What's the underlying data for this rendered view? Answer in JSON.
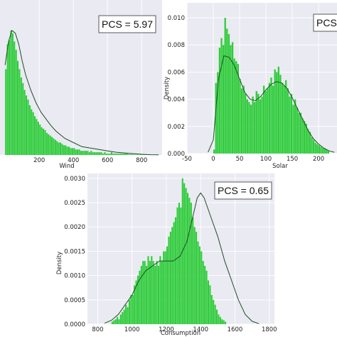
{
  "chart_data": [
    {
      "type": "bar",
      "xlabel": "Wind",
      "ylabel": "",
      "annotation": "PCS = 5.97",
      "xlim": [
        -30,
        920
      ],
      "ylim": [
        0,
        0.0112
      ],
      "xticks": [
        200,
        400,
        600,
        800
      ],
      "yticks": [],
      "grid": true,
      "bar_color": "#2ecc3a",
      "bins": {
        "start": 0,
        "width": 10,
        "values": [
          0.0062,
          0.008,
          0.0083,
          0.009,
          0.0088,
          0.0082,
          0.0076,
          0.0068,
          0.0062,
          0.0056,
          0.0052,
          0.0047,
          0.0043,
          0.004,
          0.0036,
          0.0033,
          0.0031,
          0.0028,
          0.0026,
          0.0024,
          0.0022,
          0.002,
          0.0019,
          0.0018,
          0.0016,
          0.0015,
          0.0014,
          0.0013,
          0.0012,
          0.0011,
          0.001,
          0.0009,
          0.0009,
          0.0008,
          0.0007,
          0.0007,
          0.0006,
          0.0006,
          0.0005,
          0.0005,
          0.0005,
          0.0004,
          0.0004,
          0.0004,
          0.0003,
          0.0003,
          0.0003,
          0.0003,
          0.0003,
          0.0002,
          0.0003,
          0.0002,
          0.0002,
          0.0002,
          0.0002,
          0.0002,
          0.0002,
          0.0001,
          0.0002,
          0.0001,
          0.0001,
          0.0001,
          0.0002,
          0.0001,
          0.0001,
          0.0001,
          0.0001,
          0.0001,
          0.0001,
          0.0001,
          0.0001,
          0.0001,
          5e-05,
          5e-05,
          5e-05,
          3e-05,
          3e-05,
          3e-05,
          2e-05,
          2e-05,
          2e-05,
          2e-05,
          1e-05,
          1e-05,
          1e-05,
          1e-05,
          1e-05,
          1e-05,
          1e-05,
          1e-05
        ]
      },
      "kde": {
        "x": [
          0,
          20,
          40,
          60,
          80,
          100,
          120,
          150,
          180,
          210,
          240,
          270,
          300,
          350,
          400,
          450,
          500,
          550,
          600,
          650,
          700,
          750,
          800,
          850,
          900
        ],
        "y": [
          0.0065,
          0.0082,
          0.009,
          0.0088,
          0.008,
          0.0068,
          0.0058,
          0.0047,
          0.0038,
          0.0031,
          0.0026,
          0.0021,
          0.0017,
          0.0012,
          0.0009,
          0.0006,
          0.0005,
          0.0004,
          0.0003,
          0.0002,
          0.00015,
          0.0001,
          5e-05,
          2e-05,
          1e-05
        ]
      }
    },
    {
      "type": "bar",
      "xlabel": "Solar",
      "ylabel": "Density",
      "annotation": "PCS",
      "xlim": [
        -50,
        235
      ],
      "ylim": [
        0,
        0.0111
      ],
      "xticks": [
        -50,
        0,
        50,
        100,
        150,
        200
      ],
      "yticks": [
        0.0,
        0.002,
        0.004,
        0.006,
        0.008,
        0.01
      ],
      "ytick_labels": [
        "0.000",
        "0.002",
        "0.004",
        "0.006",
        "0.008",
        "0.010"
      ],
      "grid": true,
      "bar_color": "#2ecc3a",
      "bins": {
        "start": 0,
        "width": 3.5,
        "values": [
          0.0003,
          0.0052,
          0.006,
          0.0078,
          0.0085,
          0.008,
          0.01,
          0.0092,
          0.0088,
          0.008,
          0.0082,
          0.007,
          0.0068,
          0.0066,
          0.0055,
          0.0048,
          0.005,
          0.0044,
          0.004,
          0.0038,
          0.0036,
          0.0042,
          0.0038,
          0.0046,
          0.0044,
          0.004,
          0.0042,
          0.005,
          0.0046,
          0.0048,
          0.0052,
          0.0056,
          0.005,
          0.0062,
          0.006,
          0.0064,
          0.0058,
          0.0052,
          0.005,
          0.0054,
          0.0048,
          0.0042,
          0.0044,
          0.0036,
          0.004,
          0.0034,
          0.003,
          0.003,
          0.0026,
          0.0024,
          0.0022,
          0.0018,
          0.0016,
          0.0012,
          0.001,
          0.0008,
          0.0007,
          0.0006,
          0.0005,
          0.0004,
          0.0004,
          0.0003,
          0.0002
        ]
      },
      "kde": {
        "x": [
          -10,
          0,
          10,
          20,
          30,
          40,
          50,
          60,
          70,
          80,
          90,
          100,
          110,
          120,
          130,
          140,
          150,
          160,
          170,
          180,
          190,
          200,
          210,
          220,
          230
        ],
        "y": [
          0.0001,
          0.001,
          0.0055,
          0.0072,
          0.0071,
          0.0065,
          0.0055,
          0.0045,
          0.004,
          0.0039,
          0.0042,
          0.0047,
          0.0051,
          0.0053,
          0.0052,
          0.0048,
          0.0041,
          0.0033,
          0.0025,
          0.0017,
          0.0011,
          0.0007,
          0.0004,
          0.0002,
          0.0001
        ]
      }
    },
    {
      "type": "bar",
      "xlabel": "Consumption",
      "ylabel": "Density",
      "annotation": "PCS = 0.65",
      "xlim": [
        740,
        1830
      ],
      "ylim": [
        0,
        0.0031
      ],
      "xticks": [
        800,
        1000,
        1200,
        1400,
        1600,
        1800
      ],
      "yticks": [
        0.0,
        0.0005,
        0.001,
        0.0015,
        0.002,
        0.0025,
        0.003
      ],
      "ytick_labels": [
        "0.0000",
        "0.0005",
        "0.0010",
        "0.0015",
        "0.0020",
        "0.0025",
        "0.0030"
      ],
      "grid": true,
      "bar_color": "#2ecc3a",
      "bins": {
        "start": 880,
        "width": 10,
        "values": [
          5e-05,
          8e-05,
          0.0001,
          0.00015,
          0.0001,
          0.0002,
          0.00025,
          0.0003,
          0.0004,
          0.00035,
          0.0005,
          0.0006,
          0.0006,
          0.0008,
          0.0009,
          0.001,
          0.0011,
          0.0012,
          0.0013,
          0.0013,
          0.0012,
          0.0014,
          0.0013,
          0.0014,
          0.0013,
          0.0012,
          0.0013,
          0.0012,
          0.0014,
          0.0013,
          0.0015,
          0.0015,
          0.0016,
          0.0018,
          0.0019,
          0.002,
          0.0021,
          0.0022,
          0.0024,
          0.0025,
          0.0024,
          0.003,
          0.0029,
          0.0028,
          0.0027,
          0.0026,
          0.0025,
          0.0022,
          0.002,
          0.0019,
          0.0017,
          0.0016,
          0.0015,
          0.0013,
          0.0012,
          0.0011,
          0.0009,
          0.0008,
          0.0006,
          0.0005,
          0.0004,
          0.0003,
          0.0002,
          0.00015,
          0.0001,
          8e-05,
          5e-05
        ]
      },
      "kde": {
        "x": [
          840,
          880,
          920,
          960,
          1000,
          1040,
          1080,
          1120,
          1160,
          1200,
          1240,
          1280,
          1320,
          1360,
          1380,
          1400,
          1420,
          1460,
          1500,
          1540,
          1580,
          1620,
          1660,
          1700,
          1740
        ],
        "y": [
          2e-05,
          8e-05,
          0.0002,
          0.0004,
          0.0006,
          0.0009,
          0.0011,
          0.0012,
          0.0013,
          0.0013,
          0.0013,
          0.0014,
          0.0017,
          0.0023,
          0.0026,
          0.0027,
          0.0026,
          0.0022,
          0.0018,
          0.0013,
          0.0009,
          0.0005,
          0.0002,
          6e-05,
          1e-05
        ]
      }
    }
  ]
}
